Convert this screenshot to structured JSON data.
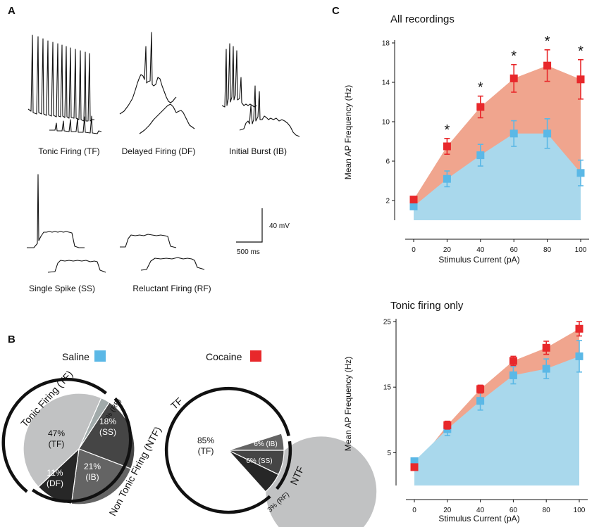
{
  "panel_labels": {
    "a": "A",
    "b": "B",
    "c": "C"
  },
  "traces": {
    "tf": "Tonic Firing (TF)",
    "df": "Delayed Firing (DF)",
    "ib": "Initial Burst (IB)",
    "ss": "Single Spike (SS)",
    "rf": "Reluctant Firing (RF)",
    "scale_v": "40 mV",
    "scale_t": "500 ms"
  },
  "colors": {
    "saline": "#5bb8e6",
    "cocaine": "#e8282b",
    "saline_fill": "#a9d8ec",
    "cocaine_fill": "#f0a58e"
  },
  "pies": {
    "saline_label": "Saline",
    "cocaine_label": "Cocaine",
    "saline": {
      "arc_tf": "Tonic Firing (TF)",
      "arc_ntf": "Non Tonic Firing (NTF)",
      "slices": [
        {
          "pct": "47%",
          "cls": "(TF)",
          "value": 47
        },
        {
          "pct": "3% (RF)",
          "cls": "",
          "value": 3
        },
        {
          "pct": "18%",
          "cls": "(SS)",
          "value": 18
        },
        {
          "pct": "21%",
          "cls": "(IB)",
          "value": 21
        },
        {
          "pct": "11%",
          "cls": "(DF)",
          "value": 11
        }
      ]
    },
    "cocaine": {
      "arc_tf": "TF",
      "arc_ntf": "NTF",
      "slices": [
        {
          "pct": "85%",
          "cls": "(TF)",
          "value": 85
        },
        {
          "pct": "6% (IB)",
          "cls": "",
          "value": 6
        },
        {
          "pct": "6% (SS)",
          "cls": "",
          "value": 6
        },
        {
          "pct": "3% (RF)",
          "cls": "",
          "value": 3
        }
      ]
    }
  },
  "chart_data": [
    {
      "type": "line",
      "title": "All recordings",
      "xlabel": "Stimulus Current (pA)",
      "ylabel": "Mean AP Frequency (Hz)",
      "x": [
        0,
        20,
        40,
        60,
        80,
        100
      ],
      "xticks": [
        "0",
        "20",
        "40",
        "60",
        "80",
        "100"
      ],
      "yticks": [
        "2",
        "6",
        "10",
        "14",
        "18"
      ],
      "ylim": [
        0,
        18
      ],
      "series": [
        {
          "name": "Saline",
          "values": [
            1.4,
            4.2,
            6.6,
            8.8,
            8.8,
            4.8
          ],
          "errors": [
            0.3,
            0.8,
            1.1,
            1.3,
            1.5,
            1.3
          ]
        },
        {
          "name": "Cocaine",
          "values": [
            2.1,
            7.5,
            11.5,
            14.4,
            15.7,
            14.3
          ],
          "errors": [
            0.3,
            0.8,
            1.1,
            1.4,
            1.6,
            2.0
          ]
        }
      ],
      "significance": [
        "",
        "*",
        "*",
        "*",
        "*",
        "*"
      ]
    },
    {
      "type": "line",
      "title": "Tonic firing only",
      "xlabel": "Stimulus Current (pA)",
      "ylabel": "Mean AP Frequency (Hz)",
      "x": [
        0,
        20,
        40,
        60,
        80,
        100
      ],
      "xticks": [
        "0",
        "20",
        "40",
        "60",
        "80",
        "100"
      ],
      "yticks": [
        "5",
        "15",
        "25"
      ],
      "ylim": [
        0,
        25
      ],
      "series": [
        {
          "name": "Saline",
          "values": [
            3.7,
            8.6,
            12.9,
            16.8,
            17.8,
            19.7
          ],
          "errors": [
            0.4,
            1.0,
            1.4,
            1.3,
            1.5,
            2.4
          ]
        },
        {
          "name": "Cocaine",
          "values": [
            2.8,
            9.2,
            14.7,
            19.0,
            21.0,
            23.9
          ],
          "errors": [
            0.4,
            0.6,
            0.6,
            0.7,
            1.0,
            1.1
          ]
        }
      ]
    }
  ]
}
